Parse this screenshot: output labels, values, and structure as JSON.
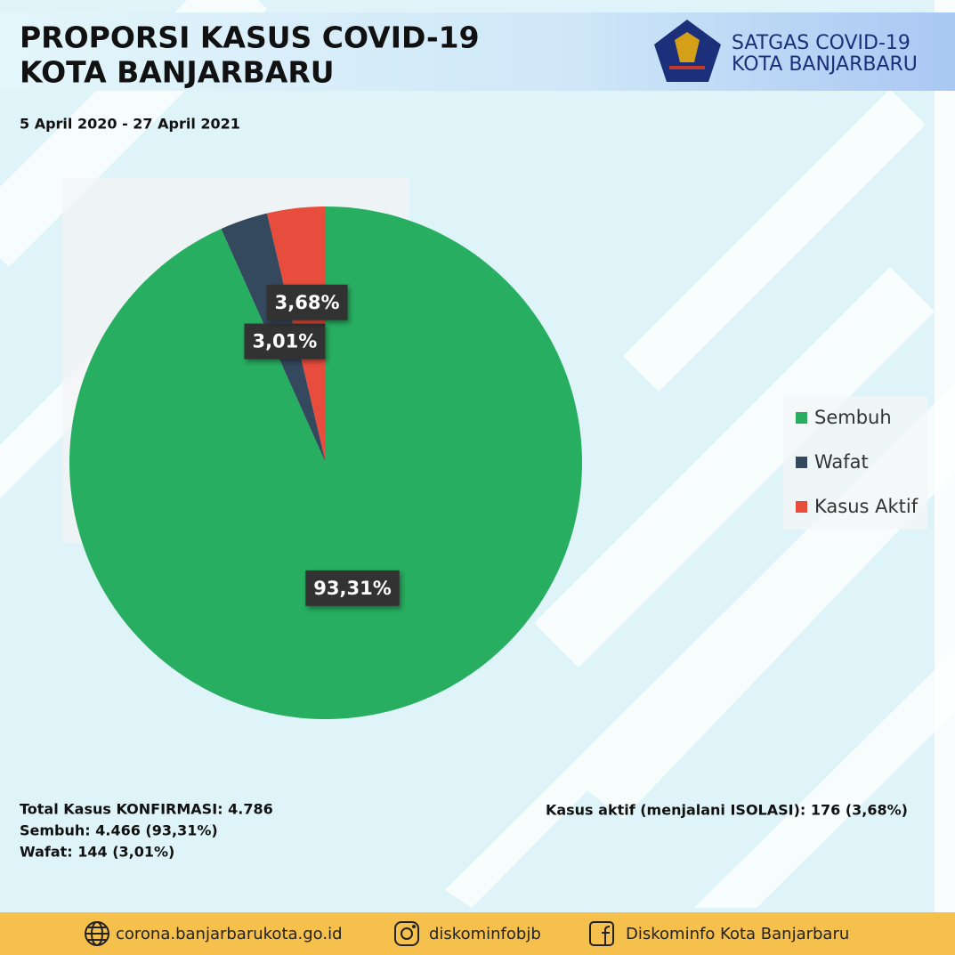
{
  "header": {
    "title": [
      "PROPORSI KASUS COVID-19",
      "KOTA BANJARBARU"
    ],
    "logo_text": [
      "SATGAS COVID-19",
      "KOTA BANJARBARU"
    ]
  },
  "chart_data": {
    "type": "pie",
    "subtitle": "5 April 2020 - 27 April 2021",
    "categories": [
      "Sembuh",
      "Wafat",
      "Kasus Aktif"
    ],
    "values": [
      93.31,
      3.01,
      3.68
    ],
    "value_labels": [
      "93,31%",
      "3,01%",
      "3,68%"
    ],
    "colors": [
      "#27ae60",
      "#34495e",
      "#e74c3c"
    ],
    "legend": "right"
  },
  "summary": {
    "left": [
      "Total Kasus KONFIRMASI: 4.786",
      "Sembuh: 4.466 (93,31%)",
      "Wafat: 144 (3,01%)"
    ],
    "right": [
      "Kasus aktif (menjalani ISOLASI): 176 (3,68%)"
    ]
  },
  "footer": [
    "corona.banjarbarukota.go.id",
    "diskominfobjb",
    "Diskominfo Kota Banjarbaru"
  ]
}
